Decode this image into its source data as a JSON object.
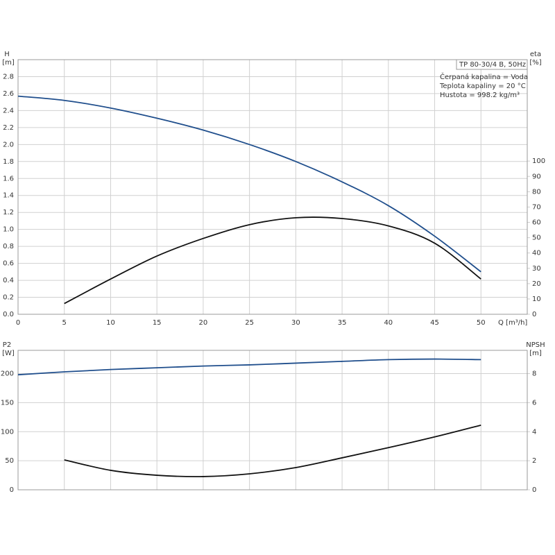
{
  "chart_data": [
    {
      "type": "line",
      "info": {
        "title": "TP 80-30/4 B, 50Hz",
        "lines": [
          "Čerpaná kapalina = Voda",
          "Teplota kapaliny = 20 °C",
          "Hustota = 998.2 kg/m³"
        ]
      },
      "xlabel": "Q [m³/h]",
      "ylabel": "H",
      "yunit": "[m]",
      "y2label": "eta",
      "y2unit": "[%]",
      "x": [
        0,
        5,
        10,
        15,
        20,
        25,
        30,
        35,
        40,
        45,
        50
      ],
      "xlim": [
        0,
        55
      ],
      "xticks": [
        0,
        5,
        10,
        15,
        20,
        25,
        30,
        35,
        40,
        45,
        50
      ],
      "ylim": [
        0,
        3
      ],
      "yticks": [
        {
          "value": 0,
          "label": "0.0"
        },
        0.2,
        0.4,
        0.6,
        0.8,
        {
          "value": 1,
          "label": "1.0"
        },
        1.2,
        1.4,
        1.6,
        1.8,
        {
          "value": 2,
          "label": "2.0"
        },
        2.2,
        2.4,
        2.6,
        2.8
      ],
      "y2lim": [
        0,
        166.2
      ],
      "y2ticks": [
        0,
        10,
        20,
        30,
        40,
        50,
        60,
        70,
        80,
        90,
        100
      ],
      "grid": true,
      "series": [
        {
          "name": "H",
          "color": "#1f4e8c",
          "values": [
            2.57,
            2.52,
            2.43,
            2.31,
            2.17,
            2.0,
            1.8,
            1.56,
            1.28,
            0.92,
            0.5
          ]
        },
        {
          "name": "eta",
          "color": "#111111",
          "axis": "y2",
          "values": [
            null,
            7,
            23,
            38,
            49.5,
            58.5,
            63,
            62.5,
            57.7,
            46.4,
            23
          ]
        }
      ]
    },
    {
      "type": "line",
      "ylabel": "P2",
      "yunit": "[W]",
      "y2label": "NPSH",
      "y2unit": "[m]",
      "x": [
        0,
        5,
        10,
        15,
        20,
        25,
        30,
        35,
        40,
        45,
        50
      ],
      "xlim": [
        0,
        55
      ],
      "xticks": [
        0,
        5,
        10,
        15,
        20,
        25,
        30,
        35,
        40,
        45,
        50
      ],
      "ylim": [
        0,
        240
      ],
      "yticks": [
        0,
        50,
        100,
        150,
        200
      ],
      "y2lim": [
        0,
        9.6
      ],
      "y2ticks": [
        0,
        2,
        4,
        6,
        8
      ],
      "grid": true,
      "series": [
        {
          "name": "P2",
          "color": "#1f4e8c",
          "values": [
            198,
            203,
            207,
            210,
            213,
            215,
            218,
            221,
            224,
            225,
            224
          ]
        },
        {
          "name": "NPSH",
          "color": "#111111",
          "axis": "y2",
          "values": [
            null,
            2.06,
            1.34,
            1.0,
            0.91,
            1.1,
            1.53,
            2.2,
            2.9,
            3.64,
            4.45
          ]
        }
      ]
    }
  ]
}
